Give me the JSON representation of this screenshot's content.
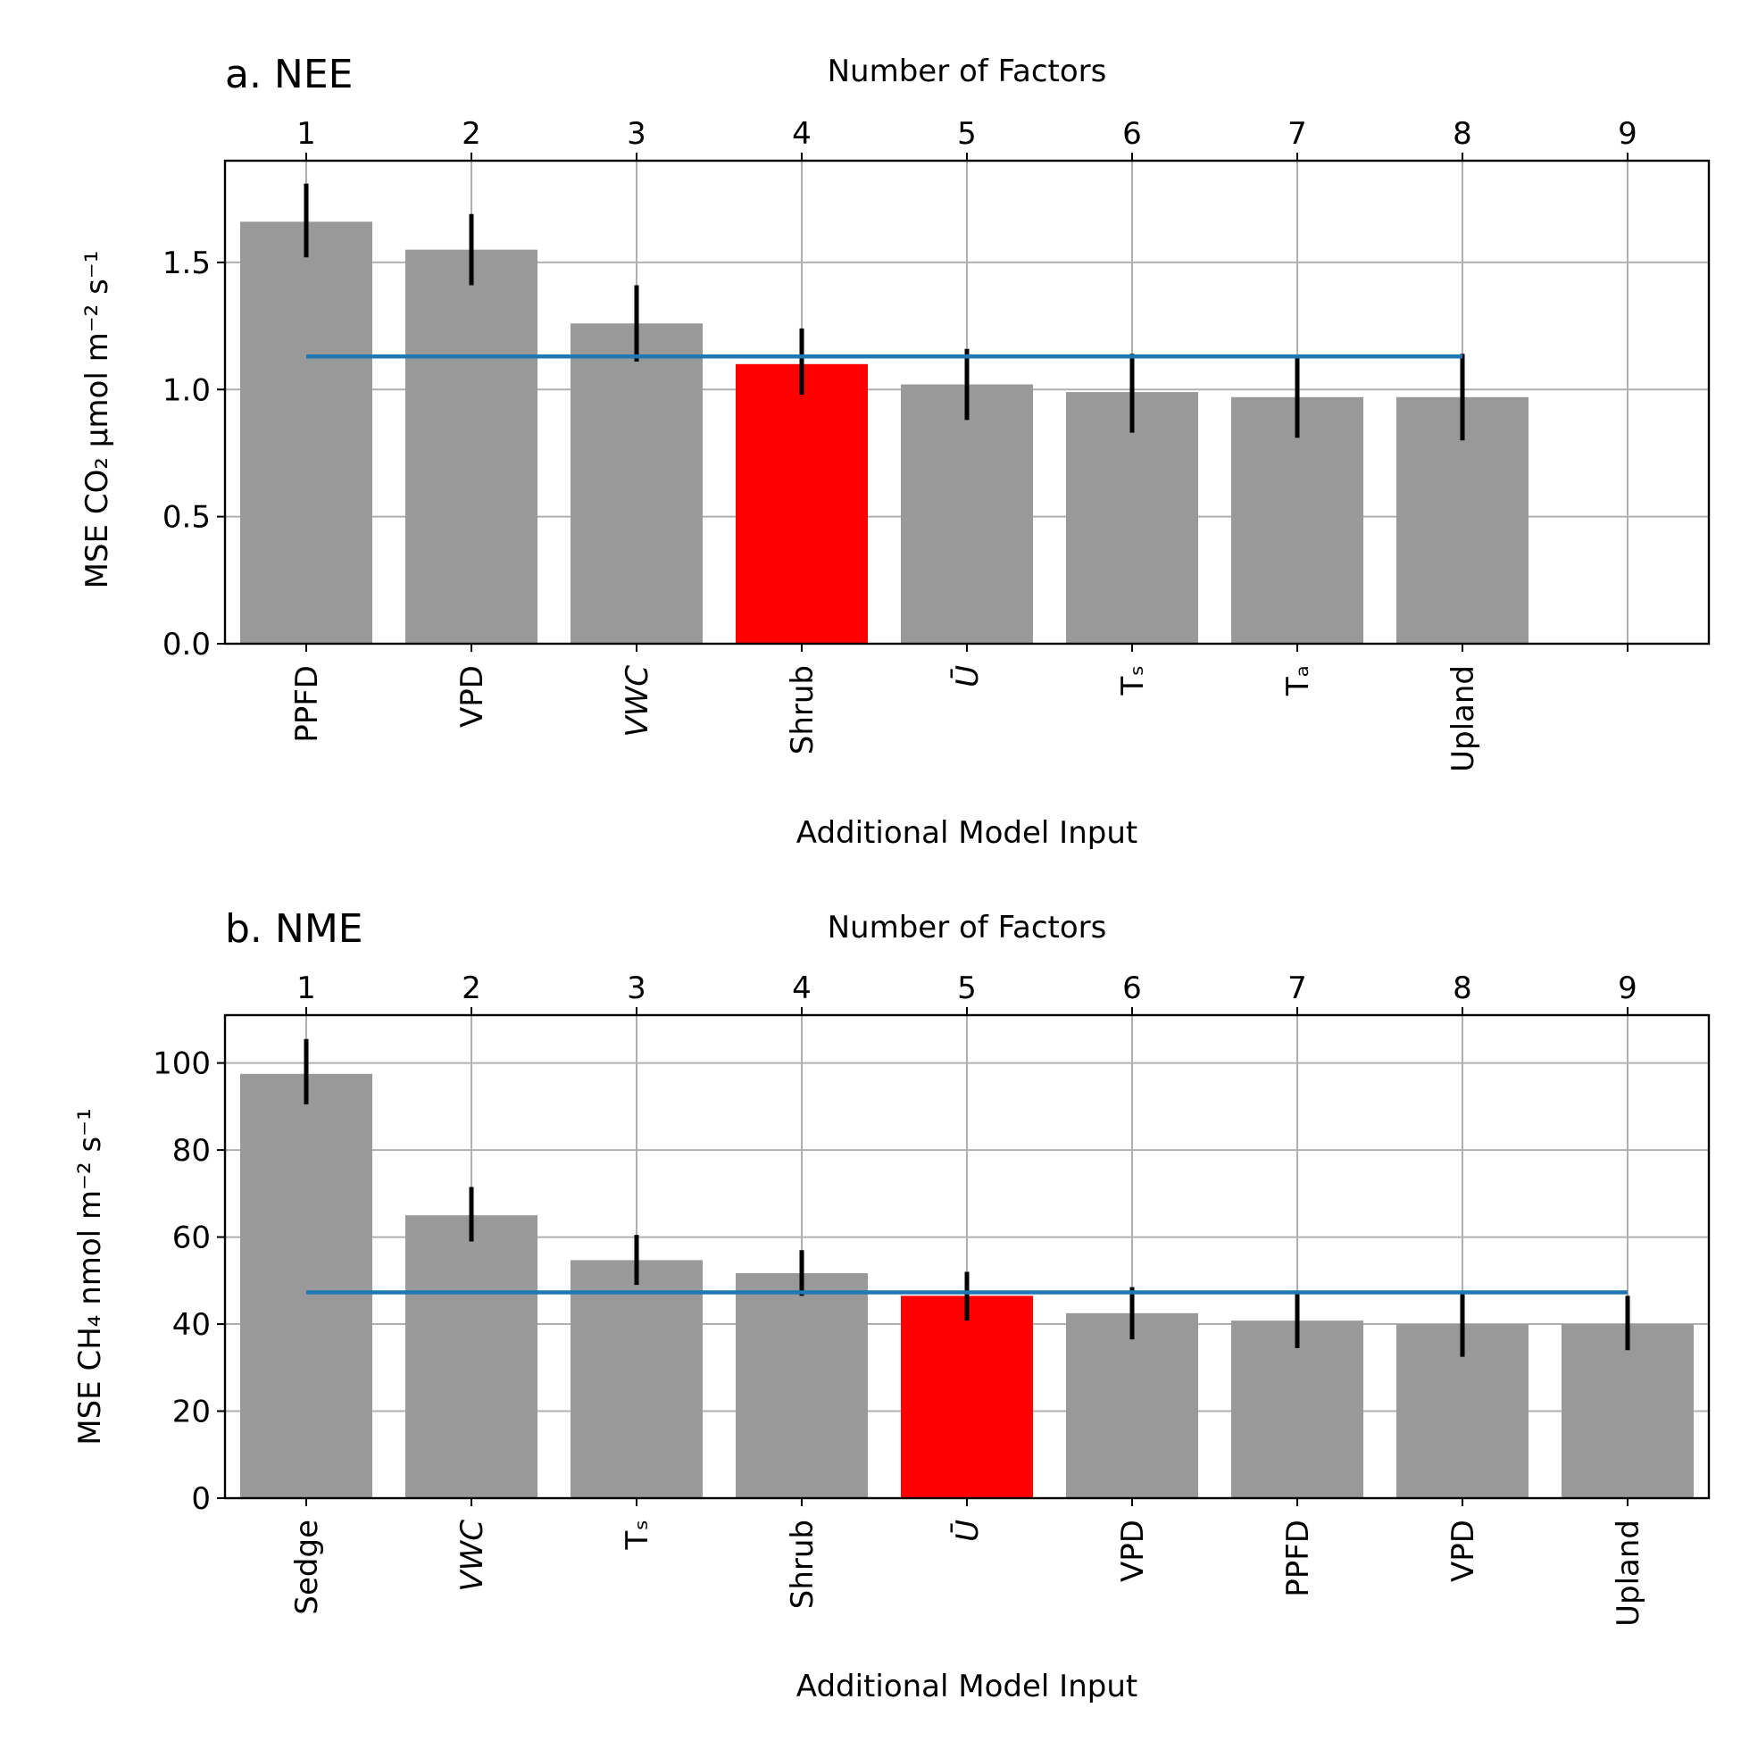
{
  "chart_data": [
    {
      "type": "bar",
      "title": "a. NEE",
      "top_axis_label": "Number of Factors",
      "xlabel": "Additional Model Input",
      "ylabel": "MSE CO₂ μmol m⁻² s⁻¹",
      "top_ticks": [
        "1",
        "2",
        "3",
        "4",
        "5",
        "6",
        "7",
        "8",
        "9"
      ],
      "categories": [
        "PPFD",
        "VPD",
        "VWC",
        "Shrub",
        "Ū",
        "Tₛ",
        "Tₐ",
        "Upland"
      ],
      "values": [
        1.66,
        1.55,
        1.26,
        1.1,
        1.02,
        0.99,
        0.97,
        0.97
      ],
      "err_low": [
        1.52,
        1.41,
        1.11,
        0.98,
        0.88,
        0.83,
        0.81,
        0.8
      ],
      "err_high": [
        1.81,
        1.69,
        1.41,
        1.24,
        1.16,
        1.14,
        1.13,
        1.14
      ],
      "highlight_index": 3,
      "reference_line": 1.13,
      "reference_span": [
        1,
        8
      ],
      "ylim": [
        0,
        1.9
      ],
      "yticks": [
        "0.0",
        "0.5",
        "1.0",
        "1.5"
      ],
      "grid": true,
      "colors": {
        "bar": "#999999",
        "highlight": "#ff0000",
        "line": "#1f77b4",
        "error": "#000000"
      }
    },
    {
      "type": "bar",
      "title": "b. NME",
      "top_axis_label": "Number of Factors",
      "xlabel": "Additional Model Input",
      "ylabel": "MSE CH₄ nmol m⁻² s⁻¹",
      "top_ticks": [
        "1",
        "2",
        "3",
        "4",
        "5",
        "6",
        "7",
        "8",
        "9"
      ],
      "categories": [
        "Sedge",
        "VWC",
        "Tₛ",
        "Shrub",
        "Ū",
        "VPD",
        "PPFD",
        "VPD",
        "Upland"
      ],
      "values": [
        97.5,
        65,
        54.7,
        51.7,
        46.5,
        42.5,
        40.8,
        40,
        40
      ],
      "err_low": [
        90.5,
        59,
        49,
        46.5,
        40.8,
        36.5,
        34.5,
        32.5,
        34
      ],
      "err_high": [
        105.5,
        71.5,
        60.5,
        57,
        52,
        48.5,
        47.5,
        47.5,
        46.5
      ],
      "highlight_index": 4,
      "reference_line": 47.3,
      "reference_span": [
        1,
        9
      ],
      "ylim": [
        0,
        111
      ],
      "yticks": [
        "0",
        "20",
        "40",
        "60",
        "80",
        "100"
      ],
      "grid": true,
      "colors": {
        "bar": "#999999",
        "highlight": "#ff0000",
        "line": "#1f77b4",
        "error": "#000000"
      }
    }
  ]
}
